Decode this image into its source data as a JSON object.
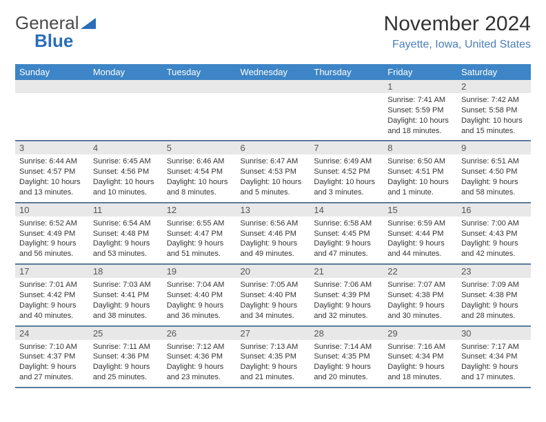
{
  "logo": {
    "part1": "General",
    "part2": "Blue"
  },
  "title": "November 2024",
  "location": "Fayette, Iowa, United States",
  "colors": {
    "header_bg": "#3d85c6",
    "header_text": "#ffffff",
    "daynum_bg": "#e8e8e8",
    "row_border": "#5a7a9a",
    "location_color": "#4a7db8",
    "logo_blue": "#2a6db8"
  },
  "dayNames": [
    "Sunday",
    "Monday",
    "Tuesday",
    "Wednesday",
    "Thursday",
    "Friday",
    "Saturday"
  ],
  "weeks": [
    [
      null,
      null,
      null,
      null,
      null,
      {
        "n": "1",
        "sunrise": "7:41 AM",
        "sunset": "5:59 PM",
        "daylight": "10 hours and 18 minutes."
      },
      {
        "n": "2",
        "sunrise": "7:42 AM",
        "sunset": "5:58 PM",
        "daylight": "10 hours and 15 minutes."
      }
    ],
    [
      {
        "n": "3",
        "sunrise": "6:44 AM",
        "sunset": "4:57 PM",
        "daylight": "10 hours and 13 minutes."
      },
      {
        "n": "4",
        "sunrise": "6:45 AM",
        "sunset": "4:56 PM",
        "daylight": "10 hours and 10 minutes."
      },
      {
        "n": "5",
        "sunrise": "6:46 AM",
        "sunset": "4:54 PM",
        "daylight": "10 hours and 8 minutes."
      },
      {
        "n": "6",
        "sunrise": "6:47 AM",
        "sunset": "4:53 PM",
        "daylight": "10 hours and 5 minutes."
      },
      {
        "n": "7",
        "sunrise": "6:49 AM",
        "sunset": "4:52 PM",
        "daylight": "10 hours and 3 minutes."
      },
      {
        "n": "8",
        "sunrise": "6:50 AM",
        "sunset": "4:51 PM",
        "daylight": "10 hours and 1 minute."
      },
      {
        "n": "9",
        "sunrise": "6:51 AM",
        "sunset": "4:50 PM",
        "daylight": "9 hours and 58 minutes."
      }
    ],
    [
      {
        "n": "10",
        "sunrise": "6:52 AM",
        "sunset": "4:49 PM",
        "daylight": "9 hours and 56 minutes."
      },
      {
        "n": "11",
        "sunrise": "6:54 AM",
        "sunset": "4:48 PM",
        "daylight": "9 hours and 53 minutes."
      },
      {
        "n": "12",
        "sunrise": "6:55 AM",
        "sunset": "4:47 PM",
        "daylight": "9 hours and 51 minutes."
      },
      {
        "n": "13",
        "sunrise": "6:56 AM",
        "sunset": "4:46 PM",
        "daylight": "9 hours and 49 minutes."
      },
      {
        "n": "14",
        "sunrise": "6:58 AM",
        "sunset": "4:45 PM",
        "daylight": "9 hours and 47 minutes."
      },
      {
        "n": "15",
        "sunrise": "6:59 AM",
        "sunset": "4:44 PM",
        "daylight": "9 hours and 44 minutes."
      },
      {
        "n": "16",
        "sunrise": "7:00 AM",
        "sunset": "4:43 PM",
        "daylight": "9 hours and 42 minutes."
      }
    ],
    [
      {
        "n": "17",
        "sunrise": "7:01 AM",
        "sunset": "4:42 PM",
        "daylight": "9 hours and 40 minutes."
      },
      {
        "n": "18",
        "sunrise": "7:03 AM",
        "sunset": "4:41 PM",
        "daylight": "9 hours and 38 minutes."
      },
      {
        "n": "19",
        "sunrise": "7:04 AM",
        "sunset": "4:40 PM",
        "daylight": "9 hours and 36 minutes."
      },
      {
        "n": "20",
        "sunrise": "7:05 AM",
        "sunset": "4:40 PM",
        "daylight": "9 hours and 34 minutes."
      },
      {
        "n": "21",
        "sunrise": "7:06 AM",
        "sunset": "4:39 PM",
        "daylight": "9 hours and 32 minutes."
      },
      {
        "n": "22",
        "sunrise": "7:07 AM",
        "sunset": "4:38 PM",
        "daylight": "9 hours and 30 minutes."
      },
      {
        "n": "23",
        "sunrise": "7:09 AM",
        "sunset": "4:38 PM",
        "daylight": "9 hours and 28 minutes."
      }
    ],
    [
      {
        "n": "24",
        "sunrise": "7:10 AM",
        "sunset": "4:37 PM",
        "daylight": "9 hours and 27 minutes."
      },
      {
        "n": "25",
        "sunrise": "7:11 AM",
        "sunset": "4:36 PM",
        "daylight": "9 hours and 25 minutes."
      },
      {
        "n": "26",
        "sunrise": "7:12 AM",
        "sunset": "4:36 PM",
        "daylight": "9 hours and 23 minutes."
      },
      {
        "n": "27",
        "sunrise": "7:13 AM",
        "sunset": "4:35 PM",
        "daylight": "9 hours and 21 minutes."
      },
      {
        "n": "28",
        "sunrise": "7:14 AM",
        "sunset": "4:35 PM",
        "daylight": "9 hours and 20 minutes."
      },
      {
        "n": "29",
        "sunrise": "7:16 AM",
        "sunset": "4:34 PM",
        "daylight": "9 hours and 18 minutes."
      },
      {
        "n": "30",
        "sunrise": "7:17 AM",
        "sunset": "4:34 PM",
        "daylight": "9 hours and 17 minutes."
      }
    ]
  ],
  "labels": {
    "sunrise": "Sunrise: ",
    "sunset": "Sunset: ",
    "daylight": "Daylight: "
  }
}
